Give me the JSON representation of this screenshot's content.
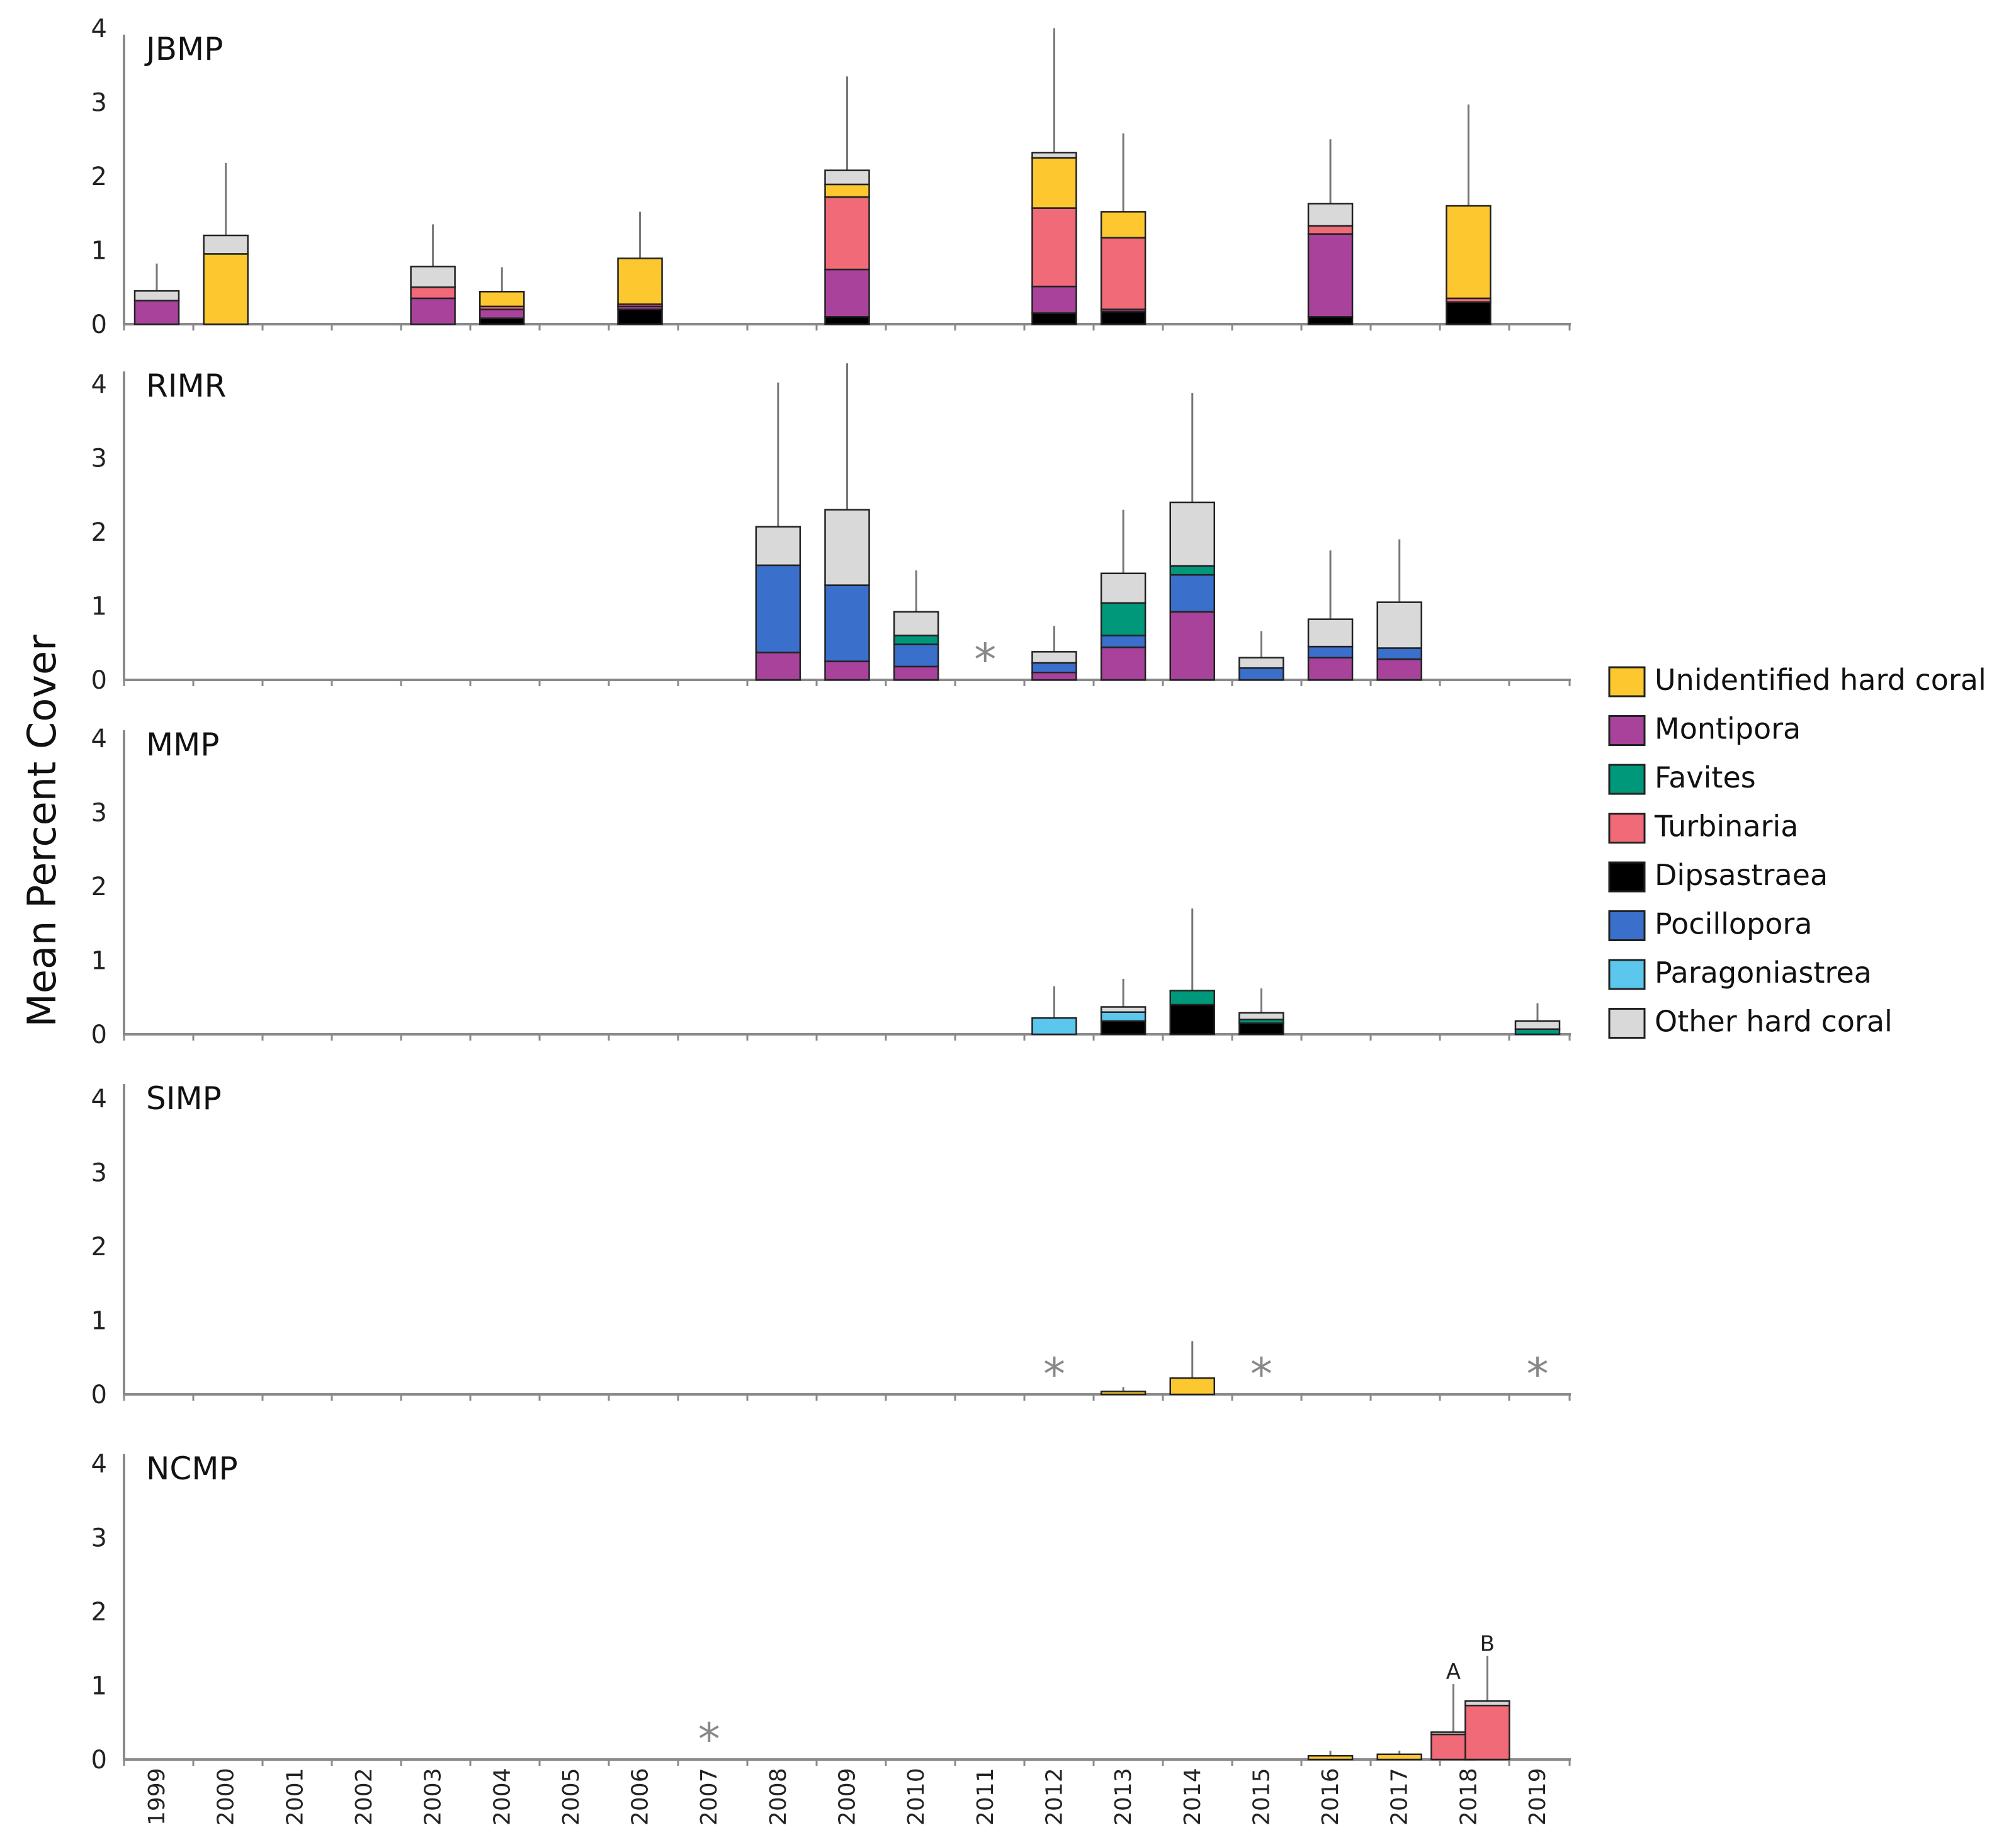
{
  "chart_data": {
    "type": "bar",
    "stacked": true,
    "ylabel": "Mean Percent Cover",
    "ylim": [
      0,
      4
    ],
    "yticks": [
      "0",
      "1",
      "2",
      "3",
      "4"
    ],
    "years": [
      "1999",
      "2000",
      "2001",
      "2002",
      "2003",
      "2004",
      "2005",
      "2006",
      "2007",
      "2008",
      "2009",
      "2010",
      "2011",
      "2012",
      "2013",
      "2014",
      "2015",
      "2016",
      "2017",
      "2018",
      "2019"
    ],
    "categories": [
      {
        "name": "Dipsastraea",
        "color": "#000000"
      },
      {
        "name": "Montipora",
        "color": "#A8429A"
      },
      {
        "name": "Turbinaria",
        "color": "#F06A78"
      },
      {
        "name": "Pocillopora",
        "color": "#3A6FCB"
      },
      {
        "name": "Favites",
        "color": "#00987A"
      },
      {
        "name": "Paragoniastrea",
        "color": "#5BC7EC"
      },
      {
        "name": "Unidentified hard coral",
        "color": "#FDC82F"
      },
      {
        "name": "Other hard coral",
        "color": "#D9D9D9"
      }
    ],
    "legend": {
      "placement": "right",
      "entries": [
        {
          "label": "Unidentified hard coral",
          "color": "#FDC82F"
        },
        {
          "label": "Montipora",
          "color": "#A8429A"
        },
        {
          "label": "Favites",
          "color": "#00987A"
        },
        {
          "label": "Turbinaria",
          "color": "#F06A78"
        },
        {
          "label": "Dipsastraea",
          "color": "#000000"
        },
        {
          "label": "Pocillopora",
          "color": "#3A6FCB"
        },
        {
          "label": "Paragoniastrea",
          "color": "#5BC7EC"
        },
        {
          "label": "Other hard coral",
          "color": "#D9D9D9"
        }
      ]
    },
    "panels": [
      {
        "name": "JBMP",
        "bars": [
          {
            "year": "1999",
            "err": 0.82,
            "segments": {
              "Montipora": 0.32,
              "Other hard coral": 0.13
            }
          },
          {
            "year": "2000",
            "err": 2.18,
            "segments": {
              "Unidentified hard coral": 0.95,
              "Other hard coral": 0.25
            }
          },
          {
            "year": "2003",
            "err": 1.35,
            "segments": {
              "Montipora": 0.35,
              "Turbinaria": 0.15,
              "Other hard coral": 0.28
            }
          },
          {
            "year": "2004",
            "err": 0.77,
            "segments": {
              "Dipsastraea": 0.08,
              "Montipora": 0.12,
              "Turbinaria": 0.04,
              "Unidentified hard coral": 0.2
            }
          },
          {
            "year": "2006",
            "err": 1.52,
            "segments": {
              "Dipsastraea": 0.2,
              "Montipora": 0.04,
              "Turbinaria": 0.03,
              "Unidentified hard coral": 0.62
            }
          },
          {
            "year": "2009",
            "err": 3.35,
            "segments": {
              "Dipsastraea": 0.1,
              "Montipora": 0.64,
              "Turbinaria": 0.98,
              "Unidentified hard coral": 0.17,
              "Other hard coral": 0.19
            }
          },
          {
            "year": "2012",
            "err": 4.0,
            "segments": {
              "Dipsastraea": 0.15,
              "Montipora": 0.36,
              "Turbinaria": 1.06,
              "Unidentified hard coral": 0.68,
              "Other hard coral": 0.07
            }
          },
          {
            "year": "2013",
            "err": 2.58,
            "segments": {
              "Dipsastraea": 0.17,
              "Montipora": 0.03,
              "Turbinaria": 0.97,
              "Unidentified hard coral": 0.35
            }
          },
          {
            "year": "2016",
            "err": 2.5,
            "segments": {
              "Dipsastraea": 0.1,
              "Montipora": 1.12,
              "Turbinaria": 0.11,
              "Other hard coral": 0.3
            }
          },
          {
            "year": "2018",
            "err": 2.97,
            "segments": {
              "Dipsastraea": 0.3,
              "Turbinaria": 0.05,
              "Unidentified hard coral": 1.25
            }
          }
        ],
        "markers": []
      },
      {
        "name": "RIMR",
        "bars": [
          {
            "year": "2008",
            "err": 4.02,
            "segments": {
              "Montipora": 0.37,
              "Pocillopora": 1.18,
              "Other hard coral": 0.52
            }
          },
          {
            "year": "2009",
            "err": 4.28,
            "segments": {
              "Montipora": 0.25,
              "Pocillopora": 1.03,
              "Other hard coral": 1.02
            }
          },
          {
            "year": "2010",
            "err": 1.48,
            "segments": {
              "Montipora": 0.18,
              "Pocillopora": 0.3,
              "Favites": 0.12,
              "Other hard coral": 0.32
            }
          },
          {
            "year": "2012",
            "err": 0.73,
            "segments": {
              "Montipora": 0.1,
              "Pocillopora": 0.13,
              "Other hard coral": 0.15
            }
          },
          {
            "year": "2013",
            "err": 2.3,
            "segments": {
              "Montipora": 0.44,
              "Pocillopora": 0.16,
              "Favites": 0.44,
              "Other hard coral": 0.4
            }
          },
          {
            "year": "2014",
            "err": 3.88,
            "segments": {
              "Montipora": 0.92,
              "Pocillopora": 0.5,
              "Favites": 0.12,
              "Other hard coral": 0.86
            }
          },
          {
            "year": "2015",
            "err": 0.66,
            "segments": {
              "Pocillopora": 0.16,
              "Other hard coral": 0.14
            }
          },
          {
            "year": "2016",
            "err": 1.75,
            "segments": {
              "Montipora": 0.3,
              "Pocillopora": 0.15,
              "Other hard coral": 0.37
            }
          },
          {
            "year": "2017",
            "err": 1.9,
            "segments": {
              "Montipora": 0.28,
              "Pocillopora": 0.15,
              "Other hard coral": 0.62
            }
          }
        ],
        "markers": [
          {
            "year": "2011",
            "label": "*"
          }
        ]
      },
      {
        "name": "MMP",
        "bars": [
          {
            "year": "2012",
            "err": 0.65,
            "segments": {
              "Paragoniastrea": 0.22
            }
          },
          {
            "year": "2013",
            "err": 0.75,
            "segments": {
              "Dipsastraea": 0.18,
              "Paragoniastrea": 0.12,
              "Other hard coral": 0.07
            }
          },
          {
            "year": "2014",
            "err": 1.7,
            "segments": {
              "Dipsastraea": 0.4,
              "Favites": 0.19
            }
          },
          {
            "year": "2015",
            "err": 0.62,
            "segments": {
              "Dipsastraea": 0.15,
              "Favites": 0.05,
              "Other hard coral": 0.09
            }
          },
          {
            "year": "2019",
            "err": 0.42,
            "segments": {
              "Favites": 0.07,
              "Other hard coral": 0.11
            }
          }
        ],
        "markers": []
      },
      {
        "name": "SIMP",
        "bars": [
          {
            "year": "2013",
            "err": 0.1,
            "segments": {
              "Unidentified hard coral": 0.04
            }
          },
          {
            "year": "2014",
            "err": 0.72,
            "segments": {
              "Unidentified hard coral": 0.22
            }
          }
        ],
        "markers": [
          {
            "year": "2012",
            "label": "*"
          },
          {
            "year": "2015",
            "label": "*"
          },
          {
            "year": "2019",
            "label": "*"
          }
        ]
      },
      {
        "name": "NCMP",
        "bars": [
          {
            "year": "2016",
            "err": 0.12,
            "segments": {
              "Unidentified hard coral": 0.05
            }
          },
          {
            "year": "2017",
            "err": 0.12,
            "segments": {
              "Unidentified hard coral": 0.07
            }
          },
          {
            "year": "2018",
            "sub": "A",
            "err": 1.02,
            "segments": {
              "Turbinaria": 0.34,
              "Other hard coral": 0.03
            }
          },
          {
            "year": "2018",
            "sub": "B",
            "err": 1.4,
            "segments": {
              "Turbinaria": 0.73,
              "Other hard coral": 0.06
            }
          }
        ],
        "markers": [
          {
            "year": "2007",
            "label": "*"
          }
        ]
      }
    ]
  }
}
